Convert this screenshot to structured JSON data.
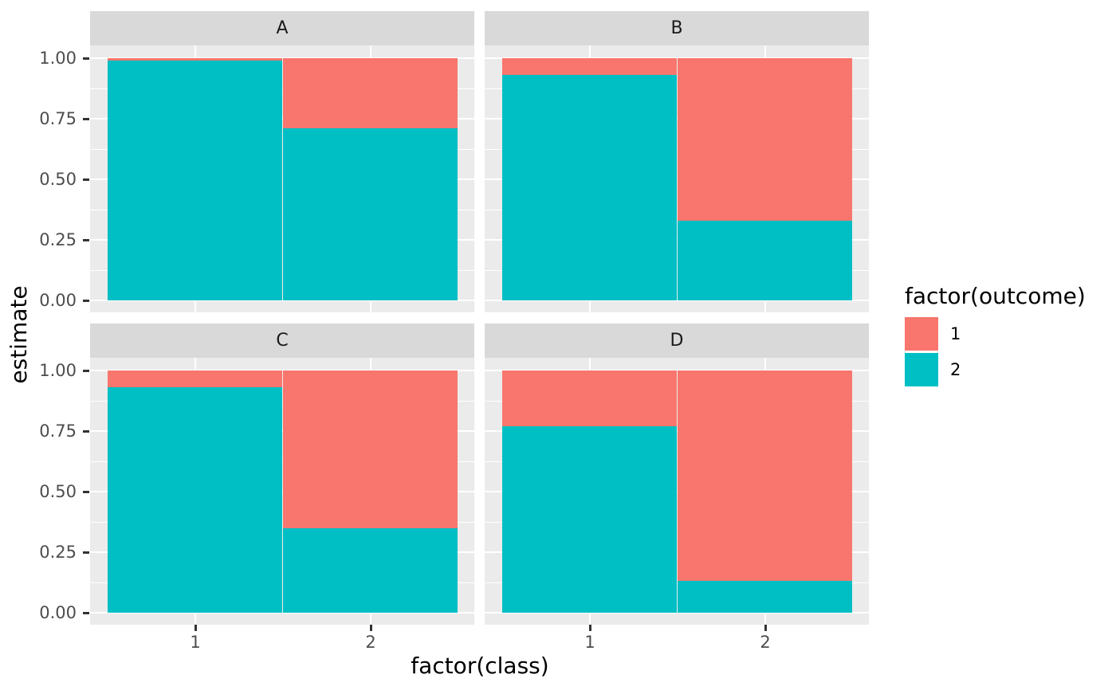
{
  "chart_data": {
    "type": "bar",
    "variant": "stacked-filled-faceted",
    "title": "",
    "xlabel": "factor(class)",
    "ylabel": "estimate",
    "legend": {
      "title": "factor(outcome)",
      "position": "right",
      "entries": [
        {
          "label": "1",
          "color": "#F8766D"
        },
        {
          "label": "2",
          "color": "#00BFC4"
        }
      ]
    },
    "x_ticks": [
      "1",
      "2"
    ],
    "y_ticks": [
      "1.00",
      "0.75",
      "0.50",
      "0.25",
      "0.00"
    ],
    "ylim": [
      0,
      1
    ],
    "grid": {
      "major_y": [
        1.0,
        0.75,
        0.5,
        0.25,
        0.0
      ],
      "minor_y": [
        0.875,
        0.625,
        0.375,
        0.125
      ]
    },
    "facets": [
      {
        "label": "A",
        "bars": [
          {
            "class": "1",
            "outcome1": 0.01,
            "outcome2": 0.99
          },
          {
            "class": "2",
            "outcome1": 0.29,
            "outcome2": 0.71
          }
        ]
      },
      {
        "label": "B",
        "bars": [
          {
            "class": "1",
            "outcome1": 0.07,
            "outcome2": 0.93
          },
          {
            "class": "2",
            "outcome1": 0.67,
            "outcome2": 0.33
          }
        ]
      },
      {
        "label": "C",
        "bars": [
          {
            "class": "1",
            "outcome1": 0.07,
            "outcome2": 0.93
          },
          {
            "class": "2",
            "outcome1": 0.65,
            "outcome2": 0.35
          }
        ]
      },
      {
        "label": "D",
        "bars": [
          {
            "class": "1",
            "outcome1": 0.23,
            "outcome2": 0.77
          },
          {
            "class": "2",
            "outcome1": 0.87,
            "outcome2": 0.13
          }
        ]
      }
    ]
  },
  "theme": {
    "outcome1_color": "#F8766D",
    "outcome2_color": "#00BFC4",
    "panel_bg": "#EBEBEB",
    "strip_bg": "#D9D9D9",
    "grid_color": "#FFFFFF",
    "tick_color": "#333333",
    "axis_text_color": "#4D4D4D",
    "background": "#FFFFFF"
  }
}
